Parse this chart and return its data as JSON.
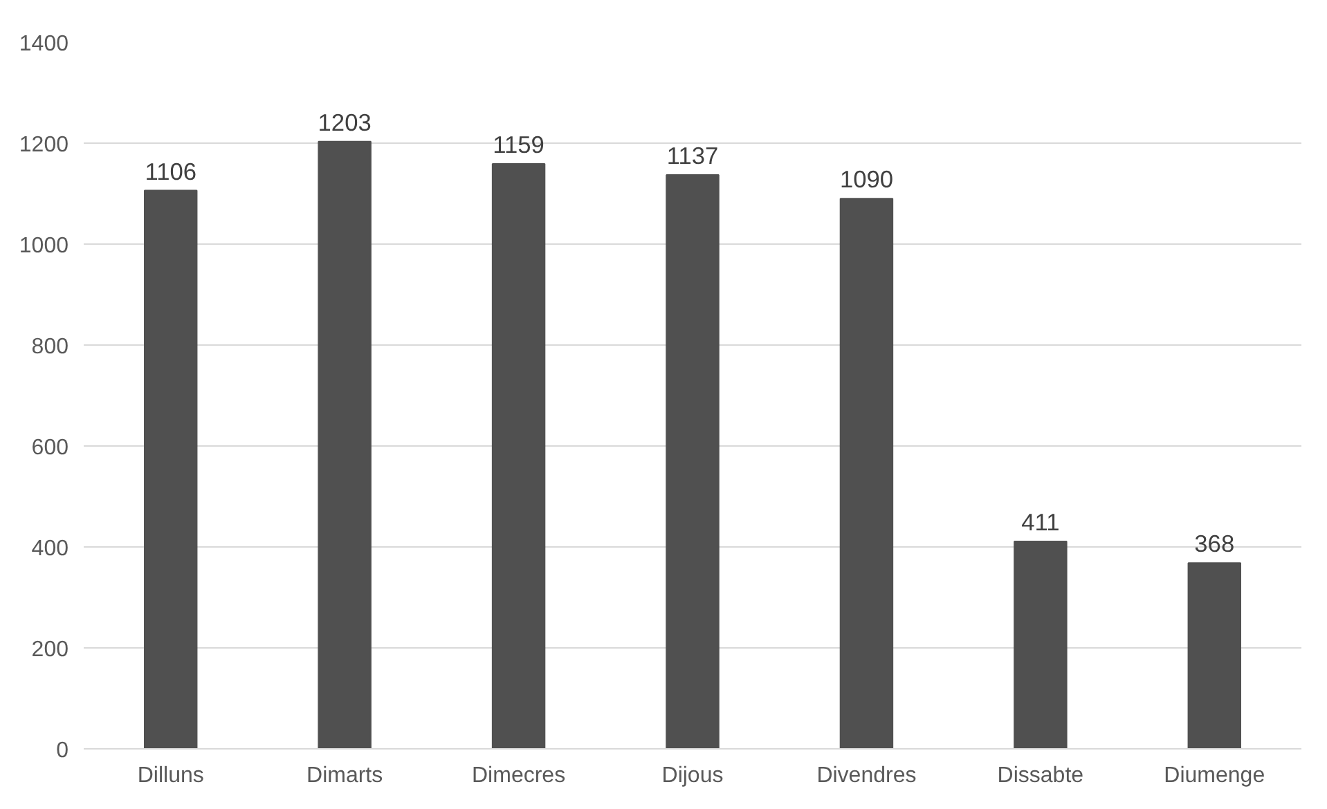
{
  "chart_data": {
    "type": "bar",
    "categories": [
      "Dilluns",
      "Dimarts",
      "Dimecres",
      "Dijous",
      "Divendres",
      "Dissabte",
      "Diumenge"
    ],
    "values": [
      1106,
      1203,
      1159,
      1137,
      1090,
      411,
      368
    ],
    "color": "#505050",
    "ylim": [
      0,
      1400
    ],
    "yticks": [
      0,
      200,
      400,
      600,
      800,
      1000,
      1200,
      1400
    ],
    "grid": "y",
    "data_labels": true
  }
}
